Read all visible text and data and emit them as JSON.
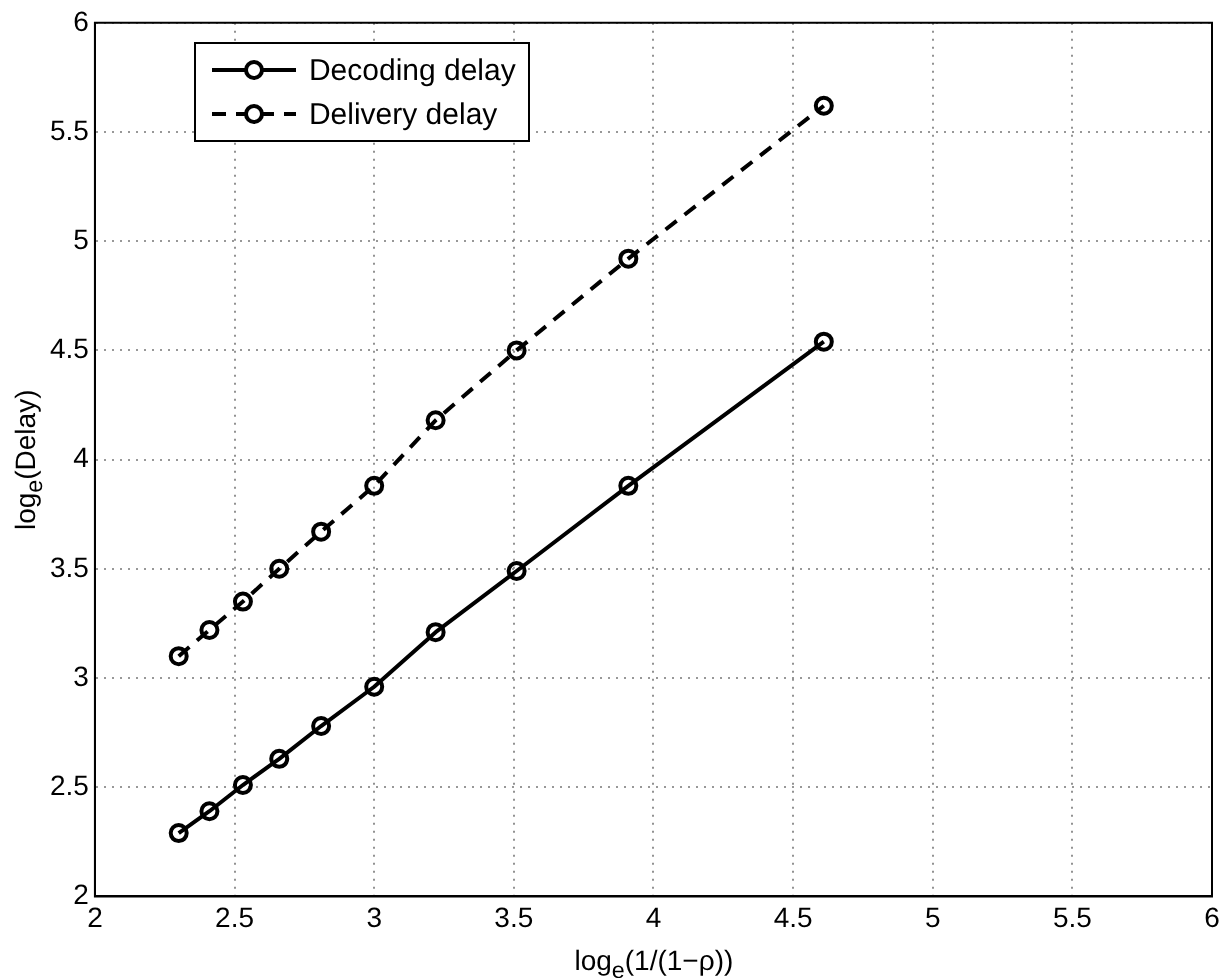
{
  "chart_data": {
    "type": "line",
    "xlabel": "log$_{e}$(1/(1−ρ))",
    "ylabel": "log$_{e}$(Delay)",
    "x": [
      2.3,
      2.41,
      2.53,
      2.66,
      2.81,
      3.0,
      3.22,
      3.51,
      3.91,
      4.61
    ],
    "series": [
      {
        "name": "Decoding delay",
        "color": "#000000",
        "line_style": "solid",
        "values": [
          2.29,
          2.39,
          2.51,
          2.63,
          2.78,
          2.96,
          3.21,
          3.49,
          3.88,
          4.54
        ]
      },
      {
        "name": "Delivery delay",
        "color": "#000000",
        "line_style": "dashed",
        "values": [
          3.1,
          3.22,
          3.35,
          3.5,
          3.67,
          3.88,
          4.18,
          4.5,
          4.92,
          5.62
        ]
      }
    ],
    "xlim": [
      2,
      6
    ],
    "xticks": [
      2,
      2.5,
      3,
      3.5,
      4,
      4.5,
      5,
      5.5,
      6
    ],
    "ylim": [
      2,
      6
    ],
    "yticks": [
      2,
      2.5,
      3,
      3.5,
      4,
      4.5,
      5,
      5.5,
      6
    ],
    "grid": true,
    "legend": "top left",
    "marker": "circle"
  }
}
